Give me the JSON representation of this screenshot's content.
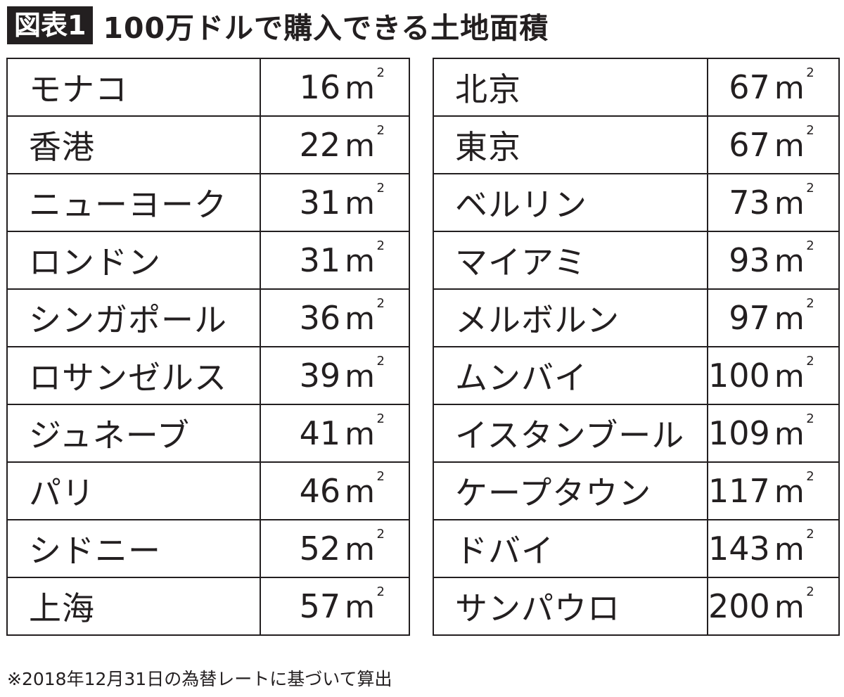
{
  "header": {
    "badge": "図表1",
    "title": "100万ドルで購入できる土地面積"
  },
  "unit": {
    "base": "m",
    "superscript": "2"
  },
  "left_table": [
    {
      "city": "モナコ",
      "area": "16"
    },
    {
      "city": "香港",
      "area": "22"
    },
    {
      "city": "ニューヨーク",
      "area": "31"
    },
    {
      "city": "ロンドン",
      "area": "31"
    },
    {
      "city": "シンガポール",
      "area": "36"
    },
    {
      "city": "ロサンゼルス",
      "area": "39"
    },
    {
      "city": "ジュネーブ",
      "area": "41"
    },
    {
      "city": "パリ",
      "area": "46"
    },
    {
      "city": "シドニー",
      "area": "52"
    },
    {
      "city": "上海",
      "area": "57"
    }
  ],
  "right_table": [
    {
      "city": "北京",
      "area": "67"
    },
    {
      "city": "東京",
      "area": "67"
    },
    {
      "city": "ベルリン",
      "area": "73"
    },
    {
      "city": "マイアミ",
      "area": "93"
    },
    {
      "city": "メルボルン",
      "area": "97"
    },
    {
      "city": "ムンバイ",
      "area": "100"
    },
    {
      "city": "イスタンブール",
      "area": "109"
    },
    {
      "city": "ケープタウン",
      "area": "117"
    },
    {
      "city": "ドバイ",
      "area": "143"
    },
    {
      "city": "サンパウロ",
      "area": "200"
    }
  ],
  "footnote": "※2018年12月31日の為替レートに基づいて算出"
}
